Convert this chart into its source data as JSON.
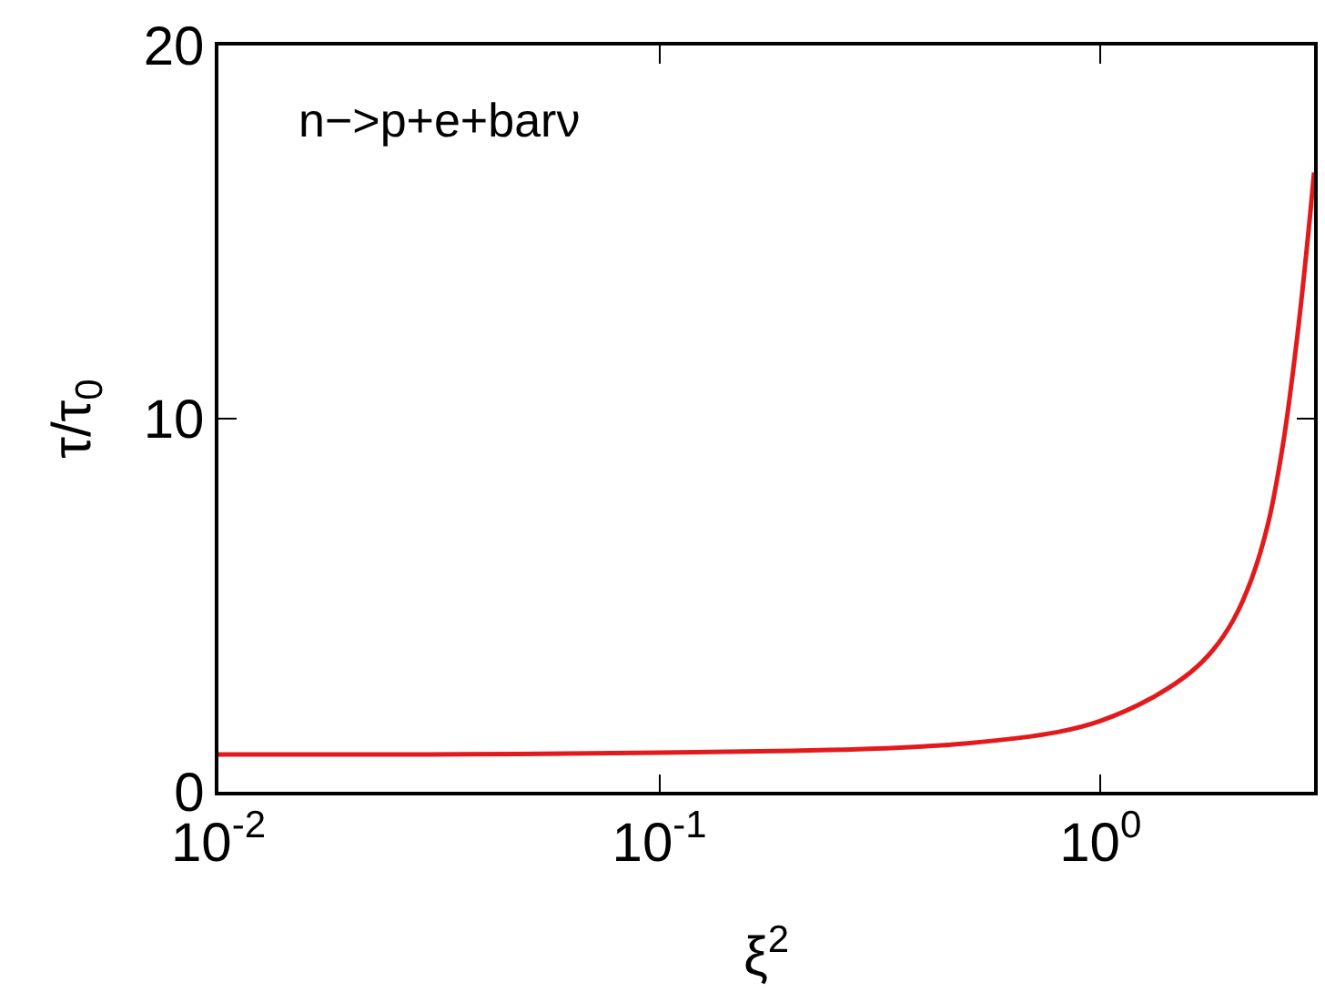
{
  "chart_data": {
    "type": "line",
    "xlabel": "ξ$^{2}$",
    "ylabel": "τ/τ$_{0}$",
    "log": "x",
    "grid": false,
    "marker": "none",
    "line_style": "solid",
    "xlim": [
      0.01,
      3.05
    ],
    "ylim": [
      0,
      20
    ],
    "xticks": [
      {
        "value": 0.01,
        "label": "10$^{-2}$"
      },
      {
        "value": 0.1,
        "label": "10$^{-1}$"
      },
      {
        "value": 1,
        "label": "10$^{0}$"
      }
    ],
    "yticks": [
      0,
      10,
      20
    ],
    "annotations": [
      "n−>p+e+barν"
    ],
    "series": [
      {
        "color": "#e31a1c",
        "x": [
          0.01,
          0.03,
          0.1,
          0.2,
          0.3,
          0.5,
          0.8,
          1.0,
          1.3,
          1.6,
          1.8,
          2.0,
          2.2,
          2.4,
          2.6,
          2.8,
          2.95,
          3.05
        ],
        "values": [
          1.0,
          1.0,
          1.05,
          1.1,
          1.15,
          1.3,
          1.6,
          1.9,
          2.5,
          3.2,
          3.8,
          4.6,
          5.7,
          7.2,
          9.4,
          12.3,
          14.8,
          16.6
        ]
      }
    ]
  }
}
